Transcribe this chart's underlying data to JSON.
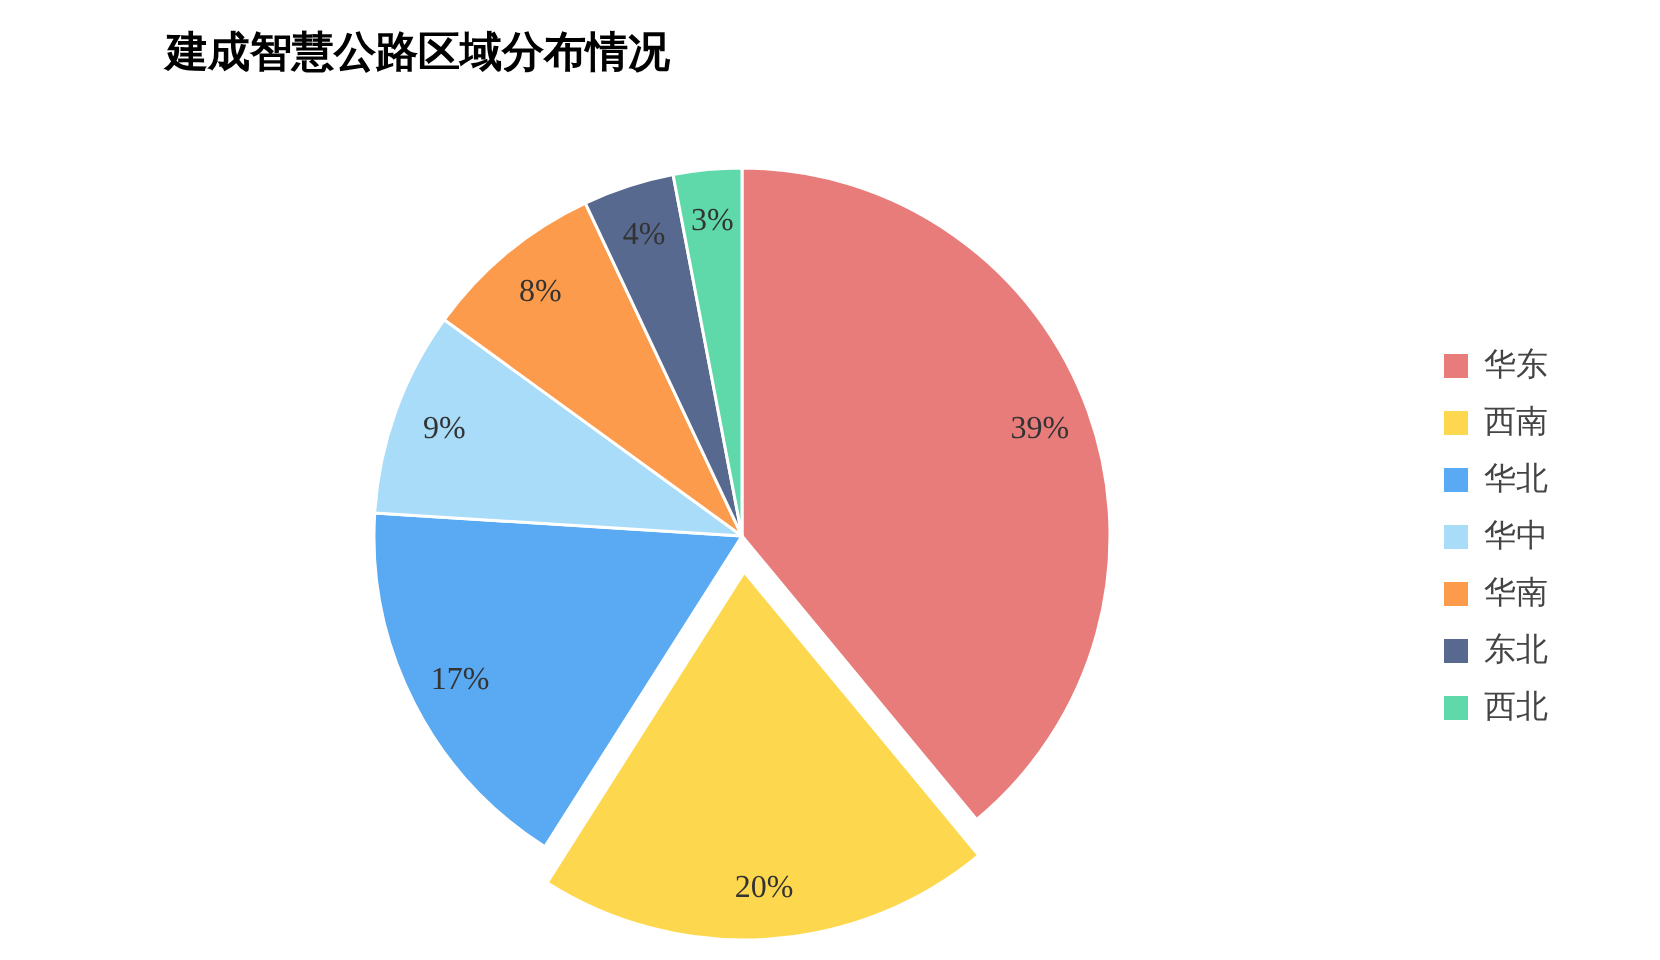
{
  "chart_data": {
    "type": "pie",
    "title": "建成智慧公路区域分布情况",
    "categories": [
      "华东",
      "西南",
      "华北",
      "华中",
      "华南",
      "东北",
      "西北"
    ],
    "values": [
      39,
      20,
      17,
      9,
      8,
      4,
      3
    ],
    "colors": [
      "#e87c7a",
      "#fdd84e",
      "#59aaf2",
      "#a8dcf9",
      "#fc9b4c",
      "#58698f",
      "#5fd9aa"
    ],
    "value_labels": [
      "39%",
      "20%",
      "17%",
      "9%",
      "8%",
      "4%",
      "3%"
    ],
    "legend": "right"
  }
}
